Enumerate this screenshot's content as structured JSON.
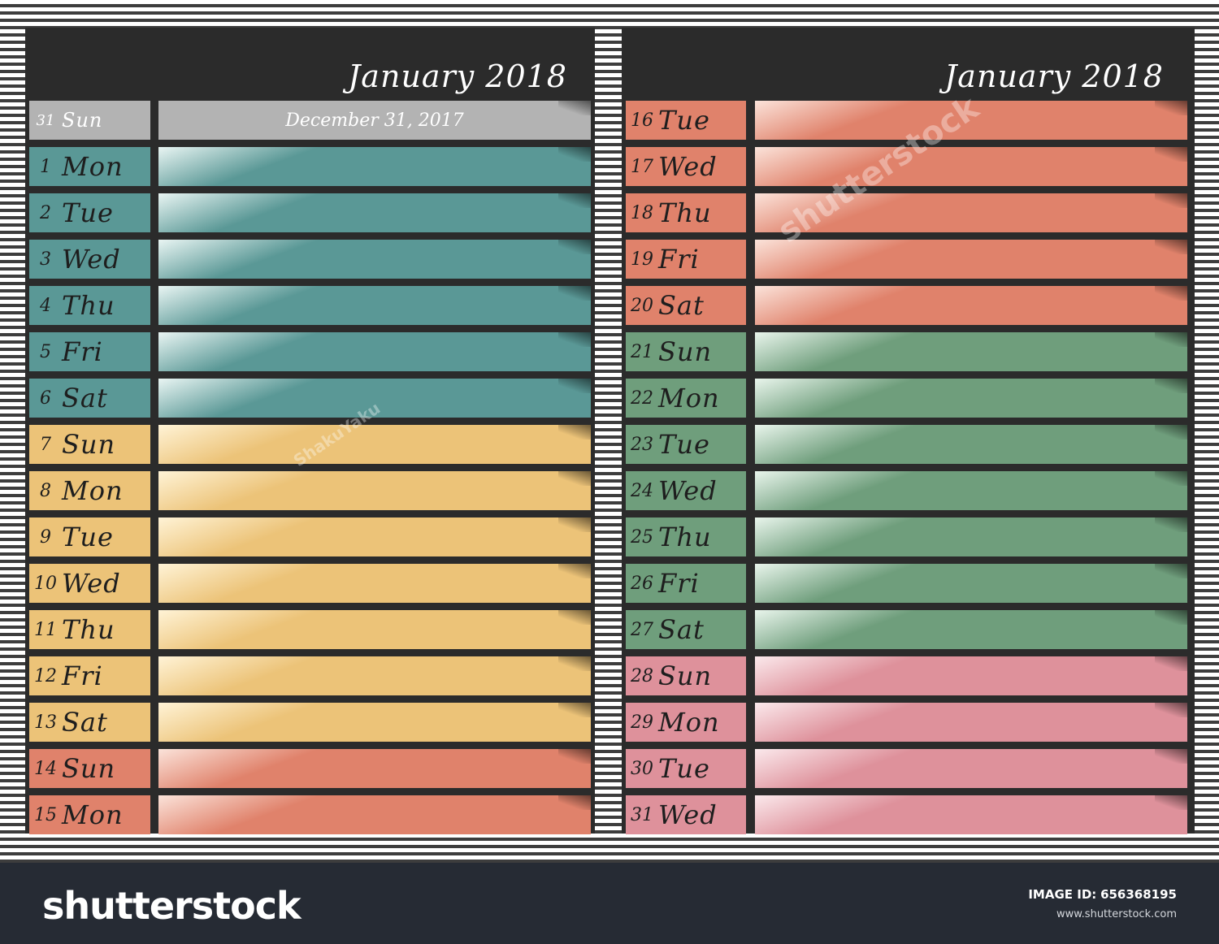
{
  "left_panel": {
    "title": "January 2018",
    "rows": [
      {
        "num": "31",
        "day": "Sun",
        "note": "December 31, 2017",
        "color": "gray"
      },
      {
        "num": "1",
        "day": "Mon",
        "note": "",
        "color": "teal"
      },
      {
        "num": "2",
        "day": "Tue",
        "note": "",
        "color": "teal"
      },
      {
        "num": "3",
        "day": "Wed",
        "note": "",
        "color": "teal"
      },
      {
        "num": "4",
        "day": "Thu",
        "note": "",
        "color": "teal"
      },
      {
        "num": "5",
        "day": "Fri",
        "note": "",
        "color": "teal"
      },
      {
        "num": "6",
        "day": "Sat",
        "note": "",
        "color": "teal"
      },
      {
        "num": "7",
        "day": "Sun",
        "note": "",
        "color": "gold"
      },
      {
        "num": "8",
        "day": "Mon",
        "note": "",
        "color": "gold"
      },
      {
        "num": "9",
        "day": "Tue",
        "note": "",
        "color": "gold"
      },
      {
        "num": "10",
        "day": "Wed",
        "note": "",
        "color": "gold"
      },
      {
        "num": "11",
        "day": "Thu",
        "note": "",
        "color": "gold"
      },
      {
        "num": "12",
        "day": "Fri",
        "note": "",
        "color": "gold"
      },
      {
        "num": "13",
        "day": "Sat",
        "note": "",
        "color": "gold"
      },
      {
        "num": "14",
        "day": "Sun",
        "note": "",
        "color": "salmon"
      },
      {
        "num": "15",
        "day": "Mon",
        "note": "",
        "color": "salmon"
      }
    ]
  },
  "right_panel": {
    "title": "January 2018",
    "rows": [
      {
        "num": "16",
        "day": "Tue",
        "note": "",
        "color": "salmon"
      },
      {
        "num": "17",
        "day": "Wed",
        "note": "",
        "color": "salmon"
      },
      {
        "num": "18",
        "day": "Thu",
        "note": "",
        "color": "salmon"
      },
      {
        "num": "19",
        "day": "Fri",
        "note": "",
        "color": "salmon"
      },
      {
        "num": "20",
        "day": "Sat",
        "note": "",
        "color": "salmon"
      },
      {
        "num": "21",
        "day": "Sun",
        "note": "",
        "color": "green"
      },
      {
        "num": "22",
        "day": "Mon",
        "note": "",
        "color": "green"
      },
      {
        "num": "23",
        "day": "Tue",
        "note": "",
        "color": "green"
      },
      {
        "num": "24",
        "day": "Wed",
        "note": "",
        "color": "green"
      },
      {
        "num": "25",
        "day": "Thu",
        "note": "",
        "color": "green"
      },
      {
        "num": "26",
        "day": "Fri",
        "note": "",
        "color": "green"
      },
      {
        "num": "27",
        "day": "Sat",
        "note": "",
        "color": "green"
      },
      {
        "num": "28",
        "day": "Sun",
        "note": "",
        "color": "pink"
      },
      {
        "num": "29",
        "day": "Mon",
        "note": "",
        "color": "pink"
      },
      {
        "num": "30",
        "day": "Tue",
        "note": "",
        "color": "pink"
      },
      {
        "num": "31",
        "day": "Wed",
        "note": "",
        "color": "pink"
      }
    ]
  },
  "colors": {
    "gray": "#b3b3b3",
    "teal": "#5a9896",
    "gold": "#ecc378",
    "salmon": "#e0826b",
    "green": "#6f9e7c",
    "pink": "#de919b",
    "panel": "#2b2b2b",
    "footer": "#262b34"
  },
  "watermarks": {
    "brand": "shutterstock",
    "author": "ShakuYaku"
  },
  "footer": {
    "logo": "shutterstock",
    "image_id_label": "IMAGE ID:",
    "image_id": "656368195",
    "url": "www.shutterstock.com"
  }
}
